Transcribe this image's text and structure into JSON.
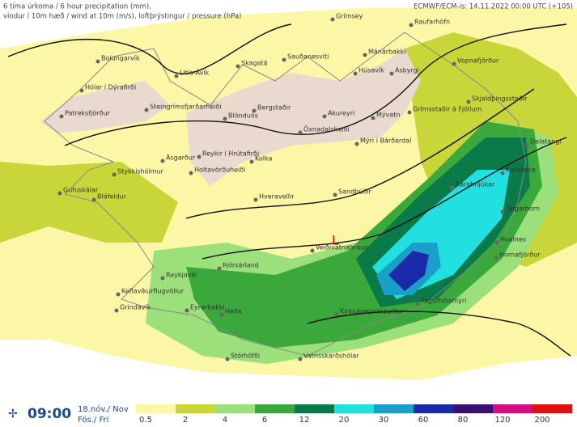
{
  "header": {
    "line1": "6 tíma úrkoma / 6 hour precipitation (mm),",
    "line2": "vindur í 10m hæð / wind at 10m (m/s), loftþrýstingur / pressure (hPa)",
    "model": "ECMWF/ECM-is: 14.11.2022 00:00 UTC (+105)"
  },
  "stations": [
    "Grímsey",
    "Raufarhöfn",
    "Bolungarvík",
    "Sauðanesviti",
    "Mánárbakki",
    "Skagatá",
    "Litla-Ávík",
    "Húsavík",
    "Ásbyrgi",
    "Vopnafjörður",
    "Hólar í Dýrafirði",
    "Patreksfjörður",
    "Steingrímsfjarðarheiði",
    "Bergstaðir",
    "Blönduós",
    "Akureyri",
    "Mývatn",
    "Grímsstaðir á Fjöllum",
    "Skjaldþingsstaðir",
    "Öxnadalsheiði",
    "Ásgarður",
    "Reykir í Hrútafirði",
    "Kolka",
    "Mýri í Bárðardal",
    "Dalatangi",
    "Stykkishólmur",
    "Holtavörðuheiði",
    "Gufuskálar",
    "Hveravellir",
    "Sandbúðir",
    "Kárahnjúkar",
    "Bláfeldur",
    "Kollaleira",
    "Teigarhorn",
    "Veiðivatnahraun",
    "Hvalnes",
    "Hornafjörður",
    "Þjórsárland",
    "Reykjavík",
    "Keflavíkurflugvöllur",
    "Grindavík",
    "Eyrarbakki",
    "Hella",
    "Kirkjubæjarklaustur",
    "Fagurhólsmýri",
    "Stórhöfði",
    "Vatnsskarðshólar"
  ],
  "low": "L",
  "footer": {
    "time": "09:00",
    "date": "18.nóv./ Nov",
    "day": "Fös./ Fri"
  },
  "legend": {
    "ticks": [
      "0.5",
      "2",
      "4",
      "6",
      "12",
      "20",
      "30",
      "60",
      "80",
      "120",
      "200"
    ],
    "colors": [
      "#fbf7a6",
      "#c9d63a",
      "#9be07a",
      "#3aa83a",
      "#0a7a48",
      "#22e0e0",
      "#1aa0c8",
      "#1a2aa8",
      "#3a1070",
      "#d01080",
      "#e01010"
    ]
  }
}
